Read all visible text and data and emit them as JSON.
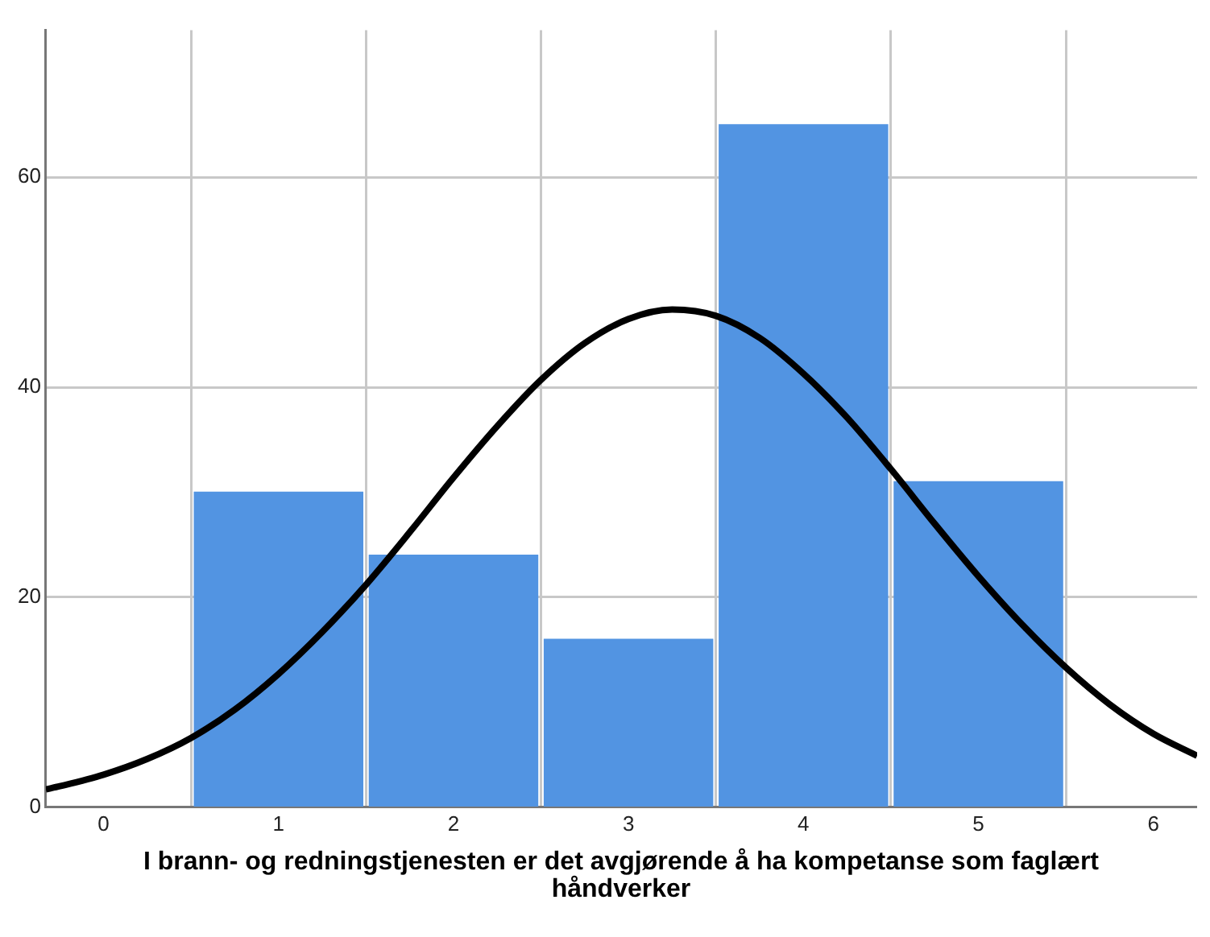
{
  "chart_data": {
    "type": "histogram",
    "xlabel": "I brann- og redningstjenesten er det avgjørende å ha kompetanse som faglært håndverker",
    "bins": [
      0.5,
      1.5,
      2.5,
      3.5,
      4.5,
      5.5
    ],
    "values": [
      30,
      24,
      16,
      65,
      31
    ],
    "color": "#5294e2",
    "series": [
      {
        "type": "line",
        "color": "#000000",
        "x": [
          -0.33,
          -0.25,
          0,
          0.25,
          0.5,
          0.75,
          1,
          1.25,
          1.5,
          1.75,
          2,
          2.25,
          2.5,
          2.75,
          3,
          3.25,
          3.5,
          3.75,
          4,
          4.25,
          4.5,
          4.75,
          5,
          5.25,
          5.5,
          5.75,
          6,
          6.25
        ],
        "values": [
          1.7,
          2.0,
          3.1,
          4.6,
          6.6,
          9.3,
          12.7,
          16.7,
          21.2,
          26.2,
          31.4,
          36.3,
          40.7,
          44.2,
          46.5,
          47.4,
          46.8,
          44.7,
          41.3,
          37.1,
          32.2,
          27.0,
          22.0,
          17.4,
          13.3,
          9.8,
          7.0,
          4.9
        ]
      }
    ],
    "xlim": [
      -0.33,
      6.25
    ],
    "ylim": [
      0,
      74
    ],
    "xticks": [
      0,
      1,
      2,
      3,
      4,
      5,
      6
    ],
    "yticks": [
      0,
      20,
      40,
      60
    ],
    "grid": true,
    "legend": false,
    "marker": "none",
    "line_style": "solid"
  }
}
